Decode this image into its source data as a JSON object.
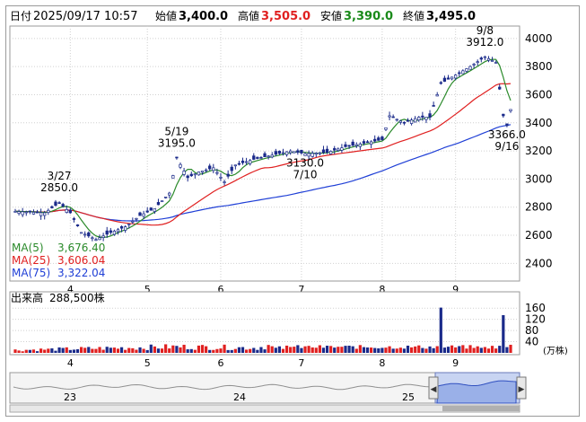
{
  "header": {
    "date_label": "日付",
    "date_value": "2025/09/17 10:57",
    "open_label": "始値",
    "open_value": "3,400.0",
    "high_label": "高値",
    "high_value": "3,505.0",
    "low_label": "安値",
    "low_value": "3,390.0",
    "close_label": "終値",
    "close_value": "3,495.0"
  },
  "legend": {
    "ma5": {
      "label": "MA(5)",
      "value": "3,676.40",
      "color": "#2a8a2a"
    },
    "ma25": {
      "label": "MA(25)",
      "value": "3,606.04",
      "color": "#e02020"
    },
    "ma75": {
      "label": "MA(75)",
      "value": "3,322.04",
      "color": "#1f3fd6"
    }
  },
  "annotations": [
    {
      "lines": [
        "3/27",
        "2850.0"
      ],
      "series": "high",
      "index": 12
    },
    {
      "lines": [
        "5/19",
        "3195.0"
      ],
      "series": "high",
      "index": 44
    },
    {
      "lines": [
        "3130.0",
        "7/10"
      ],
      "series": "low",
      "index": 79
    },
    {
      "lines": [
        "9/8",
        "3912.0"
      ],
      "series": "high",
      "index": 128
    },
    {
      "lines": [
        "3366.0",
        "9/16"
      ],
      "series": "low",
      "index": 134
    }
  ],
  "volume": {
    "label": "出来高",
    "value": "288,500株",
    "unit": "(万株)",
    "ticks": [
      "160",
      "120",
      "80",
      "40"
    ],
    "color_up": "#e02020",
    "color_down": "#1a2a8a"
  },
  "navigator": {
    "year_labels": [
      "23",
      "24",
      "25"
    ],
    "left_handle": "◀",
    "right_handle": "▶"
  },
  "colors": {
    "up": "#ffffff",
    "down": "#1a2a8a",
    "grid": "#c8c8c8",
    "navigator_fill": "#9ab0e8"
  },
  "chart_data": {
    "type": "candlestick",
    "y_ticks": [
      2400,
      2600,
      2800,
      3000,
      3200,
      3400,
      3600,
      3800,
      4000
    ],
    "ylim": [
      2300,
      4050
    ],
    "x_month_labels": [
      {
        "label": "4",
        "index": 15
      },
      {
        "label": "5",
        "index": 36
      },
      {
        "label": "6",
        "index": 56
      },
      {
        "label": "7",
        "index": 78
      },
      {
        "label": "8",
        "index": 100
      },
      {
        "label": "9",
        "index": 120
      }
    ],
    "bar_count": 136,
    "ohlc_keypoints": [
      {
        "i": 0,
        "c": 2770
      },
      {
        "i": 8,
        "c": 2760
      },
      {
        "i": 12,
        "c": 2830
      },
      {
        "i": 15,
        "c": 2760
      },
      {
        "i": 18,
        "c": 2620
      },
      {
        "i": 22,
        "c": 2570
      },
      {
        "i": 26,
        "c": 2620
      },
      {
        "i": 30,
        "c": 2660
      },
      {
        "i": 34,
        "c": 2740
      },
      {
        "i": 38,
        "c": 2790
      },
      {
        "i": 42,
        "c": 2900
      },
      {
        "i": 44,
        "c": 3150
      },
      {
        "i": 47,
        "c": 3010
      },
      {
        "i": 50,
        "c": 3050
      },
      {
        "i": 54,
        "c": 3080
      },
      {
        "i": 57,
        "c": 2980
      },
      {
        "i": 60,
        "c": 3100
      },
      {
        "i": 65,
        "c": 3140
      },
      {
        "i": 70,
        "c": 3170
      },
      {
        "i": 75,
        "c": 3200
      },
      {
        "i": 79,
        "c": 3180
      },
      {
        "i": 85,
        "c": 3190
      },
      {
        "i": 90,
        "c": 3230
      },
      {
        "i": 96,
        "c": 3260
      },
      {
        "i": 100,
        "c": 3280
      },
      {
        "i": 102,
        "c": 3450
      },
      {
        "i": 106,
        "c": 3400
      },
      {
        "i": 110,
        "c": 3440
      },
      {
        "i": 113,
        "c": 3440
      },
      {
        "i": 116,
        "c": 3680
      },
      {
        "i": 120,
        "c": 3740
      },
      {
        "i": 124,
        "c": 3800
      },
      {
        "i": 128,
        "c": 3870
      },
      {
        "i": 131,
        "c": 3830
      },
      {
        "i": 133,
        "c": 3450
      },
      {
        "i": 134,
        "c": 3380
      },
      {
        "i": 135,
        "c": 3495
      }
    ],
    "volume_keypoints": [
      {
        "i": 0,
        "v": 10
      },
      {
        "i": 44,
        "v": 22
      },
      {
        "i": 66,
        "v": 18
      },
      {
        "i": 116,
        "v": 162
      },
      {
        "i": 128,
        "v": 18
      },
      {
        "i": 133,
        "v": 135
      },
      {
        "i": 135,
        "v": 28
      }
    ]
  }
}
